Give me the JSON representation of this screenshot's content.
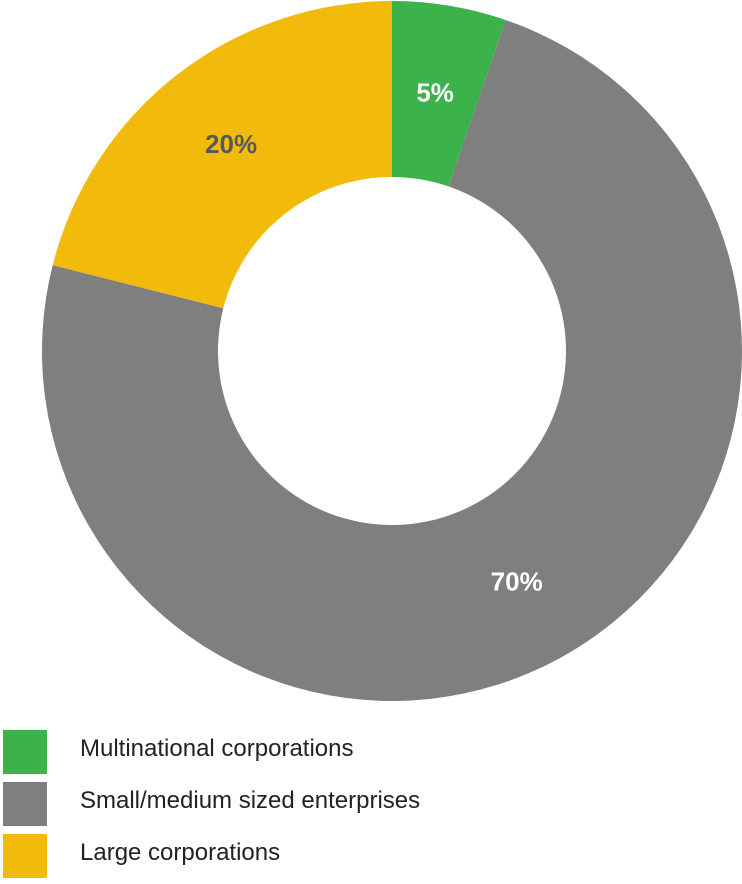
{
  "chart_data": {
    "type": "pie",
    "donut": true,
    "categories": [
      "Multinational corporations",
      "Small/medium sized enterprises",
      "Large corporations"
    ],
    "values": [
      5,
      70,
      20
    ],
    "data_labels": [
      "5%",
      "70%",
      "20%"
    ],
    "label_colors": [
      "#ffffff",
      "#ffffff",
      "#595959"
    ],
    "colors": [
      "#3cb24a",
      "#7f7f7f",
      "#f2bb0c"
    ],
    "title": "",
    "legend_placement": "bottom-left"
  },
  "legend": {
    "items": [
      {
        "label": " Multinational corporations",
        "color": "#3cb24a"
      },
      {
        "label": "Small/medium sized enterprises",
        "color": "#7f7f7f"
      },
      {
        "label": "Large corporations",
        "color": "#f2bb0c"
      }
    ]
  }
}
